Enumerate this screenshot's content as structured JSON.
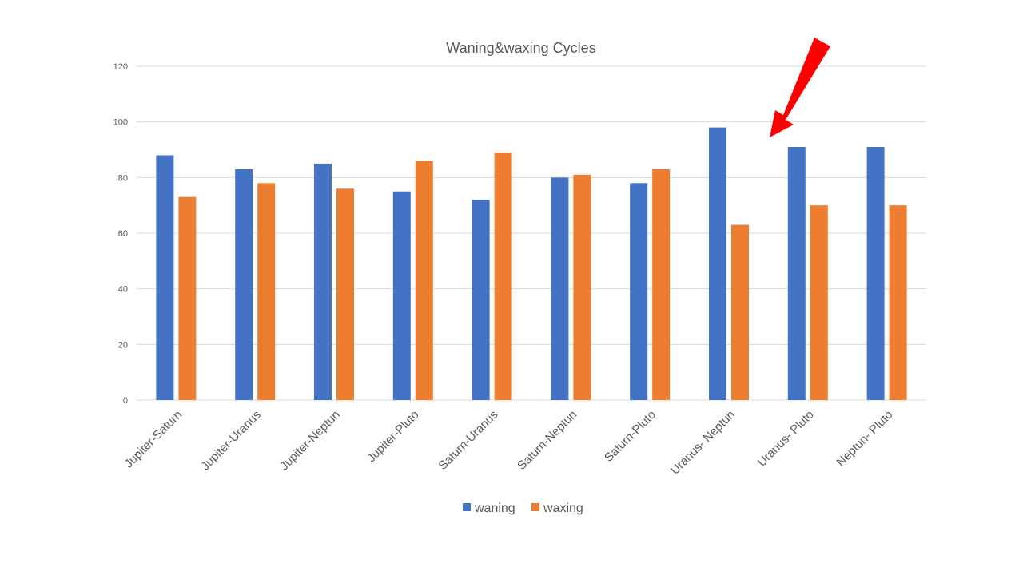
{
  "chart_data": {
    "type": "bar",
    "title": "Waning&waxing Cycles",
    "categories": [
      "Jupiter-Saturn",
      "Jupiter-Uranus",
      "Jupiter-Neptun",
      "Jupiter-Pluto",
      "Saturn-Uranus",
      "Saturn-Neptun",
      "Saturn-Pluto",
      "Uranus- Neptun",
      "Uranus- Pluto",
      "Neptun- Pluto"
    ],
    "series": [
      {
        "name": "waning",
        "color": "#4472C4",
        "values": [
          88,
          83,
          85,
          75,
          72,
          80,
          78,
          98,
          91,
          91
        ]
      },
      {
        "name": "waxing",
        "color": "#ED7D31",
        "values": [
          73,
          78,
          76,
          86,
          89,
          81,
          83,
          63,
          70,
          70
        ]
      }
    ],
    "ylim": [
      0,
      120
    ],
    "yticks": [
      "0",
      "20",
      "40",
      "60",
      "80",
      "100",
      "120"
    ],
    "grid": true,
    "legend": "bottom",
    "annotation": {
      "shape": "arrow",
      "color": "#FF0000",
      "points_to": "Uranus- Pluto"
    }
  }
}
